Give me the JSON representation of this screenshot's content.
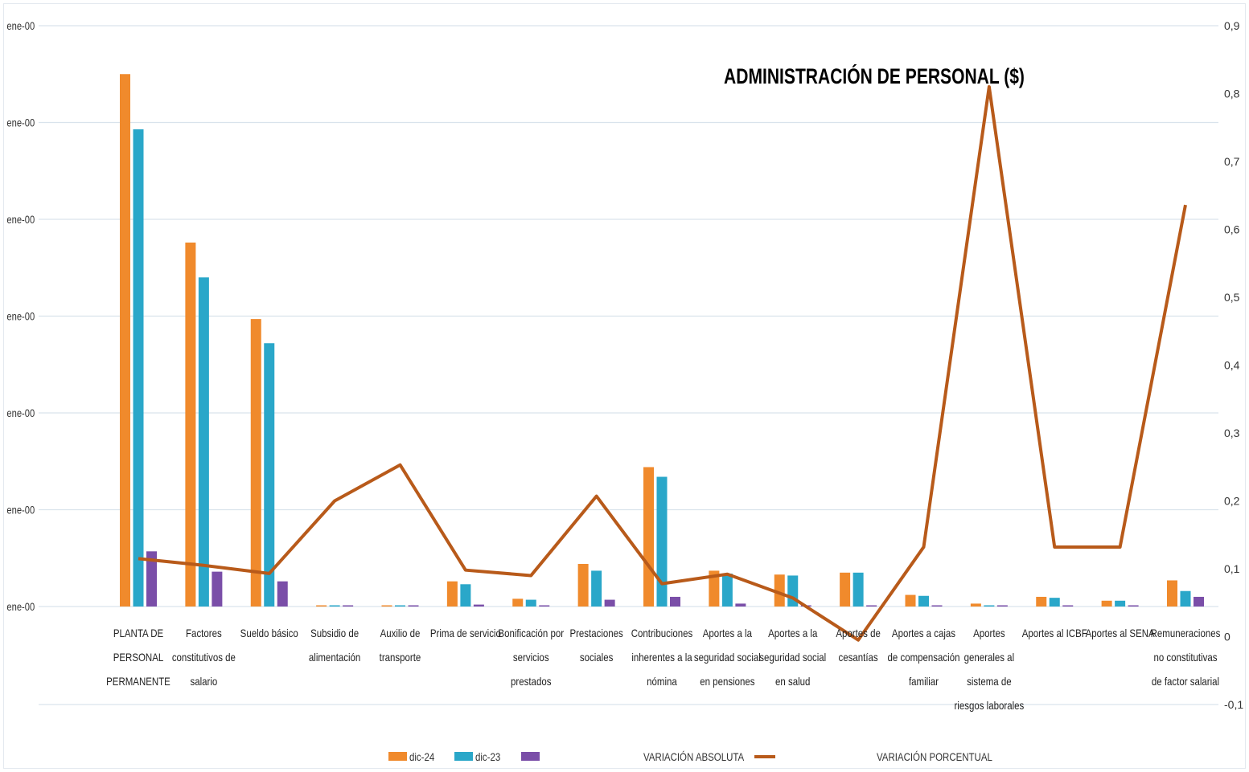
{
  "chart_data": {
    "type": "bar",
    "title": "ADMINISTRACIÓN DE PERSONAL ($)",
    "left_axis": {
      "tick_labels": [
        "ene-00",
        "ene-00",
        "ene-00",
        "ene-00",
        "ene-00",
        "ene-00",
        "ene-00"
      ],
      "ylim": [
        0,
        6
      ]
    },
    "right_axis": {
      "tick_labels": [
        "0,9",
        "0,8",
        "0,7",
        "0,6",
        "0,5",
        "0,4",
        "0,3",
        "0,2",
        "0,1",
        "0",
        "-0,1"
      ],
      "tick_values": [
        0.9,
        0.8,
        0.7,
        0.6,
        0.5,
        0.4,
        0.3,
        0.2,
        0.1,
        0,
        -0.1
      ],
      "ylim": [
        -0.1,
        0.9
      ]
    },
    "categories": [
      [
        "PLANTA DE",
        "PERSONAL",
        "PERMANENTE"
      ],
      [
        "Factores",
        "constitutivos de",
        "salario"
      ],
      [
        "Sueldo básico"
      ],
      [
        "Subsidio de",
        "alimentación"
      ],
      [
        "Auxilio de",
        "transporte"
      ],
      [
        "Prima de servicio"
      ],
      [
        "Bonificación por",
        "servicios",
        "prestados"
      ],
      [
        "Prestaciones",
        "sociales"
      ],
      [
        "Contribuciones",
        "inherentes a la",
        "nómina"
      ],
      [
        "Aportes a la",
        "seguridad social",
        "en pensiones"
      ],
      [
        "Aportes a la",
        "seguridad social",
        "en salud"
      ],
      [
        "Aportes de",
        "cesantías"
      ],
      [
        "Aportes a cajas",
        "de compensación",
        "familiar"
      ],
      [
        "Aportes",
        "generales al",
        "sistema de",
        "riesgos laborales"
      ],
      [
        "Aportes al ICBF"
      ],
      [
        "Aportes al SENA"
      ],
      [
        "Remuneraciones",
        "no constitutivas",
        "de factor salarial"
      ]
    ],
    "series": [
      {
        "name": "dic-24",
        "color": "#f08a2c",
        "axis": "left",
        "values": [
          5.5,
          3.76,
          2.97,
          0.01,
          0.01,
          0.26,
          0.08,
          0.44,
          1.44,
          0.37,
          0.33,
          0.35,
          0.12,
          0.03,
          0.1,
          0.06,
          0.27
        ]
      },
      {
        "name": "dic-23",
        "color": "#2aa7c9",
        "axis": "left",
        "values": [
          4.93,
          3.4,
          2.72,
          0.01,
          0.01,
          0.23,
          0.07,
          0.37,
          1.34,
          0.34,
          0.32,
          0.35,
          0.11,
          0.01,
          0.09,
          0.06,
          0.16
        ]
      },
      {
        "name": "",
        "color": "#7a4ea8",
        "axis": "left",
        "values": [
          0.57,
          0.36,
          0.26,
          0.01,
          0.01,
          0.02,
          0.01,
          0.07,
          0.1,
          0.03,
          0.01,
          0.0,
          0.01,
          0.01,
          0.01,
          0.01,
          0.1
        ]
      },
      {
        "name": "VARIACIÓN   ABSOLUTA",
        "color": "#b85a1a",
        "axis": "right",
        "type": "line",
        "values": [
          0.115,
          0.105,
          0.093,
          0.2,
          0.253,
          0.098,
          0.09,
          0.207,
          0.078,
          0.092,
          0.057,
          -0.005,
          0.132,
          0.81,
          0.132,
          0.132,
          0.636
        ]
      }
    ],
    "legend": {
      "position": "bottom",
      "items": [
        {
          "label": "dic-24",
          "swatch": "bar",
          "color": "#f08a2c"
        },
        {
          "label": "dic-23",
          "swatch": "bar",
          "color": "#2aa7c9"
        },
        {
          "label": "",
          "swatch": "bar",
          "color": "#7a4ea8"
        },
        {
          "label": "VARIACIÓN   ABSOLUTA",
          "swatch": "none"
        },
        {
          "label": "",
          "swatch": "line",
          "color": "#b85a1a"
        },
        {
          "label": "VARIACIÓN   PORCENTUAL",
          "swatch": "none"
        }
      ]
    },
    "grid": true
  }
}
